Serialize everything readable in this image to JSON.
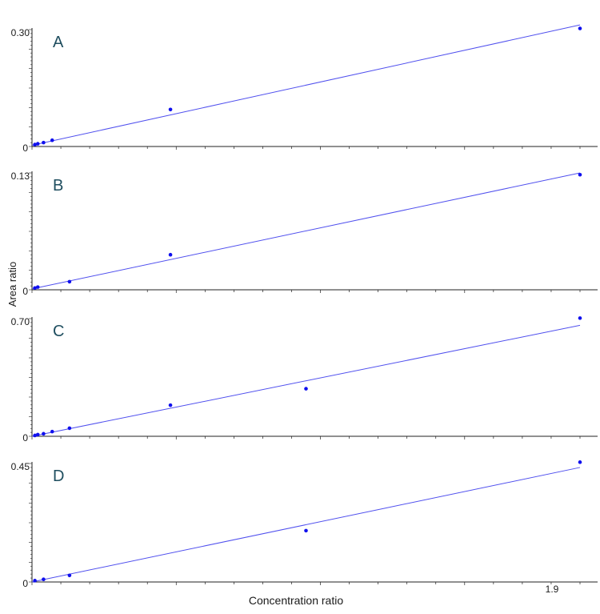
{
  "chart_data": {
    "type": "scatter",
    "ylabel": "Area ratio",
    "xlabel": "Concentration ratio",
    "x_tick_label": "1.9",
    "colors": {
      "points": "#1010ee",
      "fit_line": "#5050ee",
      "axis": "#222222",
      "panel_label": "#1f4e5f"
    },
    "x_axis": {
      "ticks_labelled": [
        "1.9"
      ],
      "minor_ticks": true
    },
    "panels": [
      {
        "label": "A",
        "y_max_label": "0.30",
        "y_min_label": "0",
        "points": [
          {
            "x": 0.01,
            "y": 0.005
          },
          {
            "x": 0.02,
            "y": 0.007
          },
          {
            "x": 0.04,
            "y": 0.01
          },
          {
            "x": 0.07,
            "y": 0.016
          },
          {
            "x": 0.48,
            "y": 0.095
          },
          {
            "x": 1.9,
            "y": 0.303
          }
        ],
        "fit": {
          "x_start": 0.0,
          "y_start": 0.003,
          "x_end": 1.9,
          "y_end": 0.312
        }
      },
      {
        "label": "B",
        "y_max_label": "0.13",
        "y_min_label": "0",
        "points": [
          {
            "x": 0.01,
            "y": 0.002
          },
          {
            "x": 0.02,
            "y": 0.003
          },
          {
            "x": 0.13,
            "y": 0.009
          },
          {
            "x": 0.48,
            "y": 0.039
          },
          {
            "x": 1.9,
            "y": 0.128
          }
        ],
        "fit": {
          "x_start": 0.0,
          "y_start": 0.001,
          "x_end": 1.9,
          "y_end": 0.13
        }
      },
      {
        "label": "C",
        "y_max_label": "0.70",
        "y_min_label": "0",
        "points": [
          {
            "x": 0.01,
            "y": 0.005
          },
          {
            "x": 0.02,
            "y": 0.01
          },
          {
            "x": 0.04,
            "y": 0.015
          },
          {
            "x": 0.07,
            "y": 0.028
          },
          {
            "x": 0.13,
            "y": 0.048
          },
          {
            "x": 0.48,
            "y": 0.185
          },
          {
            "x": 0.95,
            "y": 0.283
          },
          {
            "x": 1.9,
            "y": 0.703
          }
        ],
        "fit": {
          "x_start": 0.0,
          "y_start": 0.0,
          "x_end": 1.9,
          "y_end": 0.66
        }
      },
      {
        "label": "D",
        "y_max_label": "0.45",
        "y_min_label": "0",
        "points": [
          {
            "x": 0.01,
            "y": 0.005
          },
          {
            "x": 0.04,
            "y": 0.01
          },
          {
            "x": 0.13,
            "y": 0.025
          },
          {
            "x": 0.95,
            "y": 0.195
          },
          {
            "x": 1.9,
            "y": 0.455
          }
        ],
        "fit": {
          "x_start": 0.0,
          "y_start": 0.0,
          "x_end": 1.9,
          "y_end": 0.435
        }
      }
    ]
  }
}
